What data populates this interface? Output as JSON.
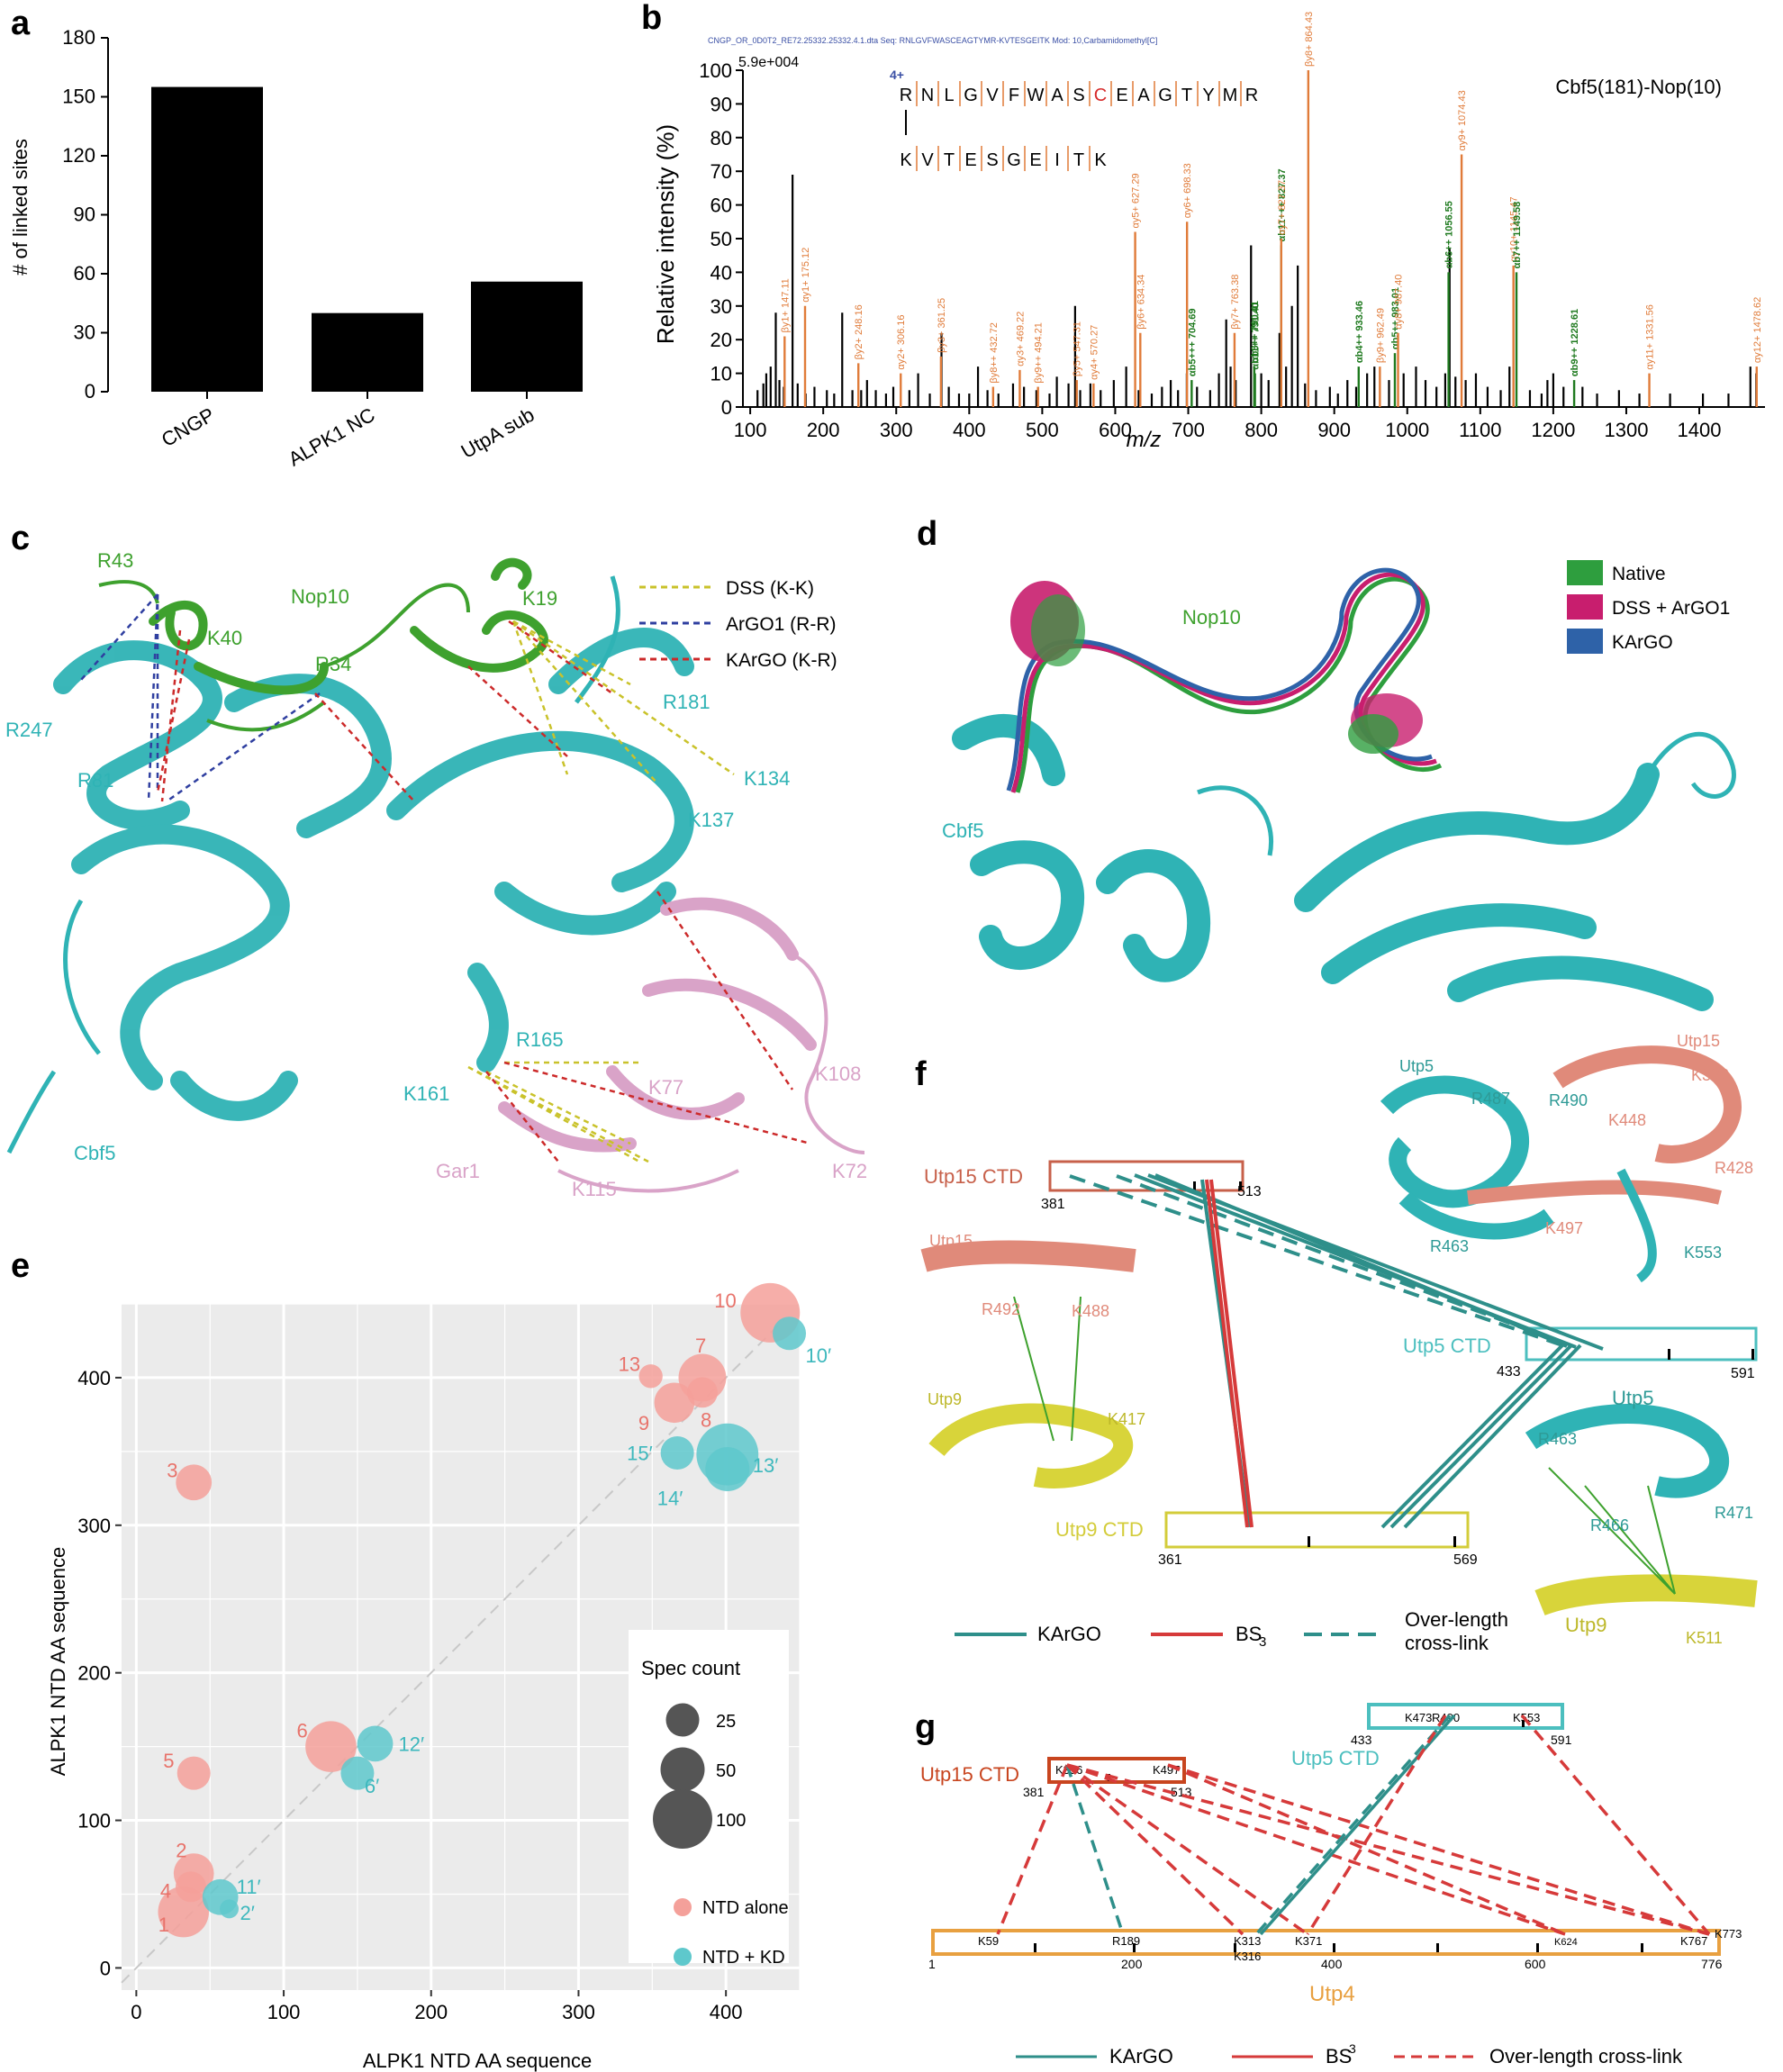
{
  "panel_letters": {
    "a": "a",
    "b": "b",
    "c": "c",
    "d": "d",
    "e": "e",
    "f": "f",
    "g": "g"
  },
  "chart_data": [
    {
      "panel": "a",
      "type": "bar",
      "categories": [
        "CNGP",
        "ALPK1 NC",
        "UtpA sub"
      ],
      "values": [
        155,
        40,
        56
      ],
      "ylabel": "# of linked sites",
      "ylim": [
        0,
        180
      ],
      "yticks": [
        0,
        30,
        60,
        90,
        120,
        150,
        180
      ],
      "bar_color": "#000000"
    },
    {
      "panel": "b",
      "type": "bar",
      "header": "CNGP_OR_0D0T2_RE72.25332.25332.4.1.dta   Seq: RNLGVFWASCEAGTYMR-KVTESGEITK   Mod: 10,Carbamidomethyl[C]",
      "scale_label": "5.9e+004",
      "title": "Cbf5(181)-Nop(10)",
      "xlabel": "m/z",
      "ylabel": "Relative intensity (%)",
      "xlim": [
        90,
        1490
      ],
      "ylim": [
        0,
        100
      ],
      "xticks": [
        100,
        200,
        300,
        400,
        500,
        600,
        700,
        800,
        900,
        1000,
        1100,
        1200,
        1300,
        1400
      ],
      "yticks": [
        0,
        10,
        20,
        30,
        40,
        50,
        60,
        70,
        80,
        90,
        100
      ],
      "charge_label": "4+",
      "seq_alpha": [
        "R",
        "N",
        "L",
        "G",
        "V",
        "F",
        "W",
        "A",
        "S",
        "C",
        "E",
        "A",
        "G",
        "T",
        "Y",
        "M",
        "R"
      ],
      "seq_beta": [
        "K",
        "V",
        "T",
        "E",
        "S",
        "G",
        "E",
        "I",
        "T",
        "K"
      ],
      "background_peaks": [
        [
          110,
          5
        ],
        [
          118,
          7
        ],
        [
          122,
          10
        ],
        [
          128,
          12
        ],
        [
          135,
          28
        ],
        [
          140,
          8
        ],
        [
          146,
          6
        ],
        [
          158,
          69
        ],
        [
          165,
          7
        ],
        [
          176,
          4
        ],
        [
          188,
          6
        ],
        [
          205,
          5
        ],
        [
          215,
          4
        ],
        [
          226,
          28
        ],
        [
          240,
          5
        ],
        [
          252,
          5
        ],
        [
          260,
          8
        ],
        [
          272,
          5
        ],
        [
          286,
          4
        ],
        [
          296,
          6
        ],
        [
          318,
          5
        ],
        [
          330,
          10
        ],
        [
          346,
          4
        ],
        [
          362,
          22
        ],
        [
          372,
          6
        ],
        [
          386,
          4
        ],
        [
          400,
          4
        ],
        [
          412,
          12
        ],
        [
          425,
          5
        ],
        [
          440,
          4
        ],
        [
          460,
          7
        ],
        [
          475,
          6
        ],
        [
          492,
          5
        ],
        [
          510,
          4
        ],
        [
          520,
          9
        ],
        [
          536,
          7
        ],
        [
          545,
          30
        ],
        [
          552,
          5
        ],
        [
          566,
          7
        ],
        [
          580,
          5
        ],
        [
          598,
          8
        ],
        [
          615,
          12
        ],
        [
          632,
          5
        ],
        [
          650,
          4
        ],
        [
          664,
          6
        ],
        [
          676,
          8
        ],
        [
          686,
          5
        ],
        [
          698,
          10
        ],
        [
          712,
          6
        ],
        [
          730,
          5
        ],
        [
          742,
          10
        ],
        [
          752,
          26
        ],
        [
          758,
          12
        ],
        [
          765,
          8
        ],
        [
          786,
          48
        ],
        [
          800,
          10
        ],
        [
          810,
          8
        ],
        [
          825,
          22
        ],
        [
          834,
          12
        ],
        [
          842,
          30
        ],
        [
          850,
          42
        ],
        [
          860,
          7
        ],
        [
          875,
          5
        ],
        [
          894,
          6
        ],
        [
          905,
          4
        ],
        [
          918,
          8
        ],
        [
          930,
          6
        ],
        [
          945,
          10
        ],
        [
          955,
          12
        ],
        [
          975,
          8
        ],
        [
          995,
          10
        ],
        [
          1012,
          12
        ],
        [
          1025,
          8
        ],
        [
          1040,
          6
        ],
        [
          1052,
          10
        ],
        [
          1058,
          47
        ],
        [
          1066,
          9
        ],
        [
          1080,
          8
        ],
        [
          1094,
          10
        ],
        [
          1110,
          6
        ],
        [
          1128,
          5
        ],
        [
          1140,
          12
        ],
        [
          1168,
          5
        ],
        [
          1184,
          4
        ],
        [
          1192,
          8
        ],
        [
          1200,
          10
        ],
        [
          1214,
          6
        ],
        [
          1240,
          6
        ],
        [
          1260,
          4
        ],
        [
          1290,
          5
        ],
        [
          1318,
          4
        ],
        [
          1360,
          4
        ],
        [
          1405,
          4
        ],
        [
          1440,
          4
        ],
        [
          1470,
          12
        ],
        [
          1478,
          10
        ]
      ],
      "annotated_peaks": [
        {
          "mz": 147.11,
          "rel": 21,
          "label": "βy1+ 147.11",
          "ion": "beta"
        },
        {
          "mz": 175.12,
          "rel": 30,
          "label": "αy1+ 175.12",
          "ion": "alpha-y"
        },
        {
          "mz": 248.16,
          "rel": 13,
          "label": "βy2+ 248.16",
          "ion": "beta"
        },
        {
          "mz": 306.16,
          "rel": 10,
          "label": "αy2+ 306.16",
          "ion": "alpha-y"
        },
        {
          "mz": 361.25,
          "rel": 15,
          "label": "βy3+ 361.25",
          "ion": "beta"
        },
        {
          "mz": 432.72,
          "rel": 6,
          "label": "βy8++ 432.72",
          "ion": "beta"
        },
        {
          "mz": 469.22,
          "rel": 11,
          "label": "αy3+ 469.22",
          "ion": "alpha-y"
        },
        {
          "mz": 494.21,
          "rel": 6,
          "label": "βy9++ 494.21",
          "ion": "beta"
        },
        {
          "mz": 547.31,
          "rel": 8,
          "label": "βy5+ 547.31",
          "ion": "beta"
        },
        {
          "mz": 570.27,
          "rel": 7,
          "label": "αy4+ 570.27",
          "ion": "alpha-y"
        },
        {
          "mz": 627.29,
          "rel": 52,
          "label": "αy5+ 627.29",
          "ion": "alpha-y"
        },
        {
          "mz": 634.34,
          "rel": 22,
          "label": "βy6+ 634.34",
          "ion": "beta"
        },
        {
          "mz": 698.33,
          "rel": 55,
          "label": "αy6+ 698.33",
          "ion": "alpha-y"
        },
        {
          "mz": 704.69,
          "rel": 8,
          "label": "αb5+++ 704.69",
          "ion": "alpha-b"
        },
        {
          "mz": 763.38,
          "rel": 22,
          "label": "βy7+ 763.38",
          "ion": "beta"
        },
        {
          "mz": 790.41,
          "rel": 12,
          "label": "αb8++ 790.41",
          "ion": "alpha-b"
        },
        {
          "mz": 791.4,
          "rel": 10,
          "label": "αb11++ 791.40",
          "ion": "alpha-b"
        },
        {
          "mz": 827.37,
          "rel": 48,
          "label": "αb11+++ 827.37",
          "ion": "alpha-b"
        },
        {
          "mz": 827.37,
          "rel": 50,
          "label": "αy7+ 827.37",
          "ion": "alpha-y"
        },
        {
          "mz": 864.43,
          "rel": 100,
          "label": "βy8+ 864.43",
          "ion": "beta"
        },
        {
          "mz": 933.46,
          "rel": 12,
          "label": "αb4++ 933.46",
          "ion": "alpha-b"
        },
        {
          "mz": 962.49,
          "rel": 12,
          "label": "βy9+ 962.49",
          "ion": "beta"
        },
        {
          "mz": 983.01,
          "rel": 16,
          "label": "αb5++ 983.01",
          "ion": "alpha-b"
        },
        {
          "mz": 987.4,
          "rel": 22,
          "label": "αy8+ 987.40",
          "ion": "alpha-y"
        },
        {
          "mz": 1056.55,
          "rel": 40,
          "label": "αb6++ 1056.55",
          "ion": "alpha-b"
        },
        {
          "mz": 1074.43,
          "rel": 75,
          "label": "αy9+ 1074.43",
          "ion": "alpha-y"
        },
        {
          "mz": 1145.47,
          "rel": 42,
          "label": "αy10+ 1145.47",
          "ion": "alpha-y"
        },
        {
          "mz": 1149.58,
          "rel": 40,
          "label": "αb7++ 1149.58",
          "ion": "alpha-b"
        },
        {
          "mz": 1228.61,
          "rel": 8,
          "label": "αb9++ 1228.61",
          "ion": "alpha-b"
        },
        {
          "mz": 1331.56,
          "rel": 10,
          "label": "αy11+ 1331.56",
          "ion": "alpha-y"
        },
        {
          "mz": 1478.62,
          "rel": 12,
          "label": "αy12+ 1478.62",
          "ion": "alpha-y"
        }
      ],
      "colors": {
        "alpha-y": "#e07b39",
        "beta": "#e07b39",
        "alpha-b": "#1f7a1f",
        "other": "#000000"
      }
    },
    {
      "panel": "e",
      "type": "scatter",
      "xlabel": "ALPK1 NTD AA sequence",
      "ylabel": "ALPK1 NTD AA sequence",
      "xlim": [
        -10,
        450
      ],
      "ylim": [
        -15,
        450
      ],
      "xticks": [
        0,
        100,
        200,
        300,
        400
      ],
      "yticks": [
        0,
        100,
        200,
        300,
        400
      ],
      "series": [
        {
          "name": "NTD alone",
          "color": "#f4a09a",
          "points": [
            {
              "x": 32,
              "y": 38,
              "count": 70,
              "label": "1"
            },
            {
              "x": 39,
              "y": 64,
              "count": 40,
              "label": "2"
            },
            {
              "x": 39,
              "y": 329,
              "count": 30,
              "label": "3"
            },
            {
              "x": 37,
              "y": 55,
              "count": 20,
              "label": "4"
            },
            {
              "x": 39,
              "y": 132,
              "count": 25,
              "label": "5"
            },
            {
              "x": 132,
              "y": 150,
              "count": 70,
              "label": "6"
            },
            {
              "x": 384,
              "y": 400,
              "count": 60,
              "label": "7"
            },
            {
              "x": 384,
              "y": 390,
              "count": 20,
              "label": "8"
            },
            {
              "x": 365,
              "y": 383,
              "count": 40,
              "label": "9"
            },
            {
              "x": 430,
              "y": 444,
              "count": 100,
              "label": "10"
            },
            {
              "x": 349,
              "y": 401,
              "count": 10,
              "label": "13"
            }
          ]
        },
        {
          "name": "NTD + KD",
          "color": "#5ec8cc",
          "points": [
            {
              "x": 63,
              "y": 40,
              "count": 5,
              "label": "2′"
            },
            {
              "x": 150,
              "y": 132,
              "count": 25,
              "label": "6′"
            },
            {
              "x": 443,
              "y": 430,
              "count": 25,
              "label": "10′"
            },
            {
              "x": 57,
              "y": 48,
              "count": 30,
              "label": "11′"
            },
            {
              "x": 162,
              "y": 152,
              "count": 30,
              "label": "12′"
            },
            {
              "x": 401,
              "y": 348,
              "count": 110,
              "label": "13′"
            },
            {
              "x": 401,
              "y": 338,
              "count": 50,
              "label": "14′"
            },
            {
              "x": 367,
              "y": 349,
              "count": 25,
              "label": "15′"
            }
          ]
        }
      ],
      "size_legend_title": "Spec count",
      "size_legend": [
        25,
        50,
        100
      ],
      "grid": true
    }
  ],
  "panel_c": {
    "legend": [
      {
        "label": "DSS (K-K)",
        "color": "#c9c22a"
      },
      {
        "label": "ArGO1 (R-R)",
        "color": "#2f3fa0"
      },
      {
        "label": "KArGO (K-R)",
        "color": "#cc2a2a"
      }
    ],
    "labels_green": [
      "Nop10",
      "R43",
      "K40",
      "R34",
      "K19"
    ],
    "labels_cyan": [
      "R247",
      "R81",
      "R181",
      "K134",
      "K137",
      "R165",
      "K161",
      "Cbf5"
    ],
    "labels_pink": [
      "K77",
      "K108",
      "K72",
      "K115",
      "Gar1"
    ]
  },
  "panel_d": {
    "legend": [
      {
        "label": "Native",
        "color": "#2e9e3e"
      },
      {
        "label": "DSS + ArGO1",
        "color": "#c81e6e"
      },
      {
        "label": "KArGO",
        "color": "#2e62a8"
      }
    ],
    "label_nop10": "Nop10",
    "label_cbf5": "Cbf5"
  },
  "panel_f": {
    "box_utp15": {
      "label": "Utp15 CTD",
      "start": "381",
      "end": "513"
    },
    "box_utp5": {
      "label": "Utp5 CTD",
      "start": "433",
      "end": "591"
    },
    "box_utp9": {
      "label": "Utp9 CTD",
      "start": "361",
      "end": "569"
    },
    "legend": [
      {
        "label": "KArGO",
        "color": "#2e8f8a",
        "style": "solid"
      },
      {
        "label": "BS3",
        "color": "#d63a3a",
        "style": "solid"
      },
      {
        "label": "Over-length cross-link",
        "color": "#2e8f8a",
        "style": "dashed"
      }
    ],
    "legend_bs_text": "BS",
    "legend_bs_sub": "3",
    "legend_over_1": "Over-length",
    "legend_over_2": "cross-link",
    "struct1_labels": [
      "Utp5",
      "Utp15",
      "R487",
      "R490",
      "K396",
      "K448",
      "R428",
      "R463",
      "K497",
      "K553"
    ],
    "struct2_labels": [
      "Utp15",
      "R492",
      "K488",
      "Utp9",
      "K417"
    ],
    "struct3_labels": [
      "Utp5",
      "R463",
      "R466",
      "R471",
      "Utp9",
      "K511"
    ]
  },
  "panel_g": {
    "box_utp15": {
      "label": "Utp15 CTD",
      "start": "381",
      "end": "513",
      "sites": [
        "K396",
        "K497"
      ]
    },
    "box_utp5": {
      "label": "Utp5 CTD",
      "start": "433",
      "end": "591",
      "sites": [
        "K473",
        "R490",
        "K553"
      ]
    },
    "box_utp4": {
      "label": "Utp4",
      "start": "1",
      "end": "776",
      "ticks": [
        "200",
        "400",
        "600"
      ],
      "sites": [
        "K59",
        "R189",
        "K313",
        "K316",
        "K371",
        "K624",
        "K767",
        "K773"
      ]
    },
    "legend": [
      {
        "label": "KArGO",
        "color": "#2e8f8a",
        "style": "solid"
      },
      {
        "label": "BS",
        "color": "#d63a3a",
        "style": "solid"
      },
      {
        "label": "Over-length cross-link",
        "color": "#d63a3a",
        "style": "dashed"
      }
    ],
    "legend_bs_sup": "3"
  }
}
